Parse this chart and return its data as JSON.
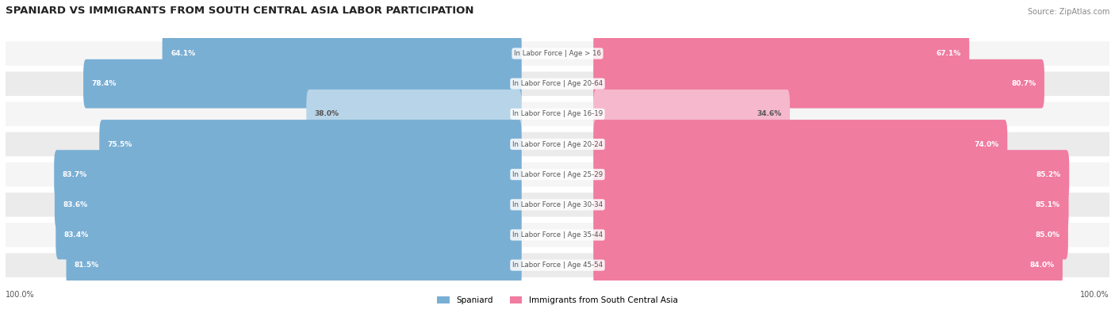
{
  "title": "SPANIARD VS IMMIGRANTS FROM SOUTH CENTRAL ASIA LABOR PARTICIPATION",
  "source": "Source: ZipAtlas.com",
  "categories": [
    "In Labor Force | Age > 16",
    "In Labor Force | Age 20-64",
    "In Labor Force | Age 16-19",
    "In Labor Force | Age 20-24",
    "In Labor Force | Age 25-29",
    "In Labor Force | Age 30-34",
    "In Labor Force | Age 35-44",
    "In Labor Force | Age 45-54"
  ],
  "spaniard_values": [
    64.1,
    78.4,
    38.0,
    75.5,
    83.7,
    83.6,
    83.4,
    81.5
  ],
  "immigrant_values": [
    67.1,
    80.7,
    34.6,
    74.0,
    85.2,
    85.1,
    85.0,
    84.0
  ],
  "spaniard_color": "#7aafd4",
  "spaniard_color_light": "#b8d4e8",
  "immigrant_color": "#f07ca0",
  "immigrant_color_light": "#f5b8cc",
  "bar_bg_color": "#f0f0f0",
  "row_bg_color": "#f5f5f5",
  "row_bg_color_alt": "#ebebeb",
  "label_color_dark": "#333333",
  "label_color_white": "#ffffff",
  "max_value": 100.0,
  "legend_spaniard": "Spaniard",
  "legend_immigrant": "Immigrants from South Central Asia"
}
